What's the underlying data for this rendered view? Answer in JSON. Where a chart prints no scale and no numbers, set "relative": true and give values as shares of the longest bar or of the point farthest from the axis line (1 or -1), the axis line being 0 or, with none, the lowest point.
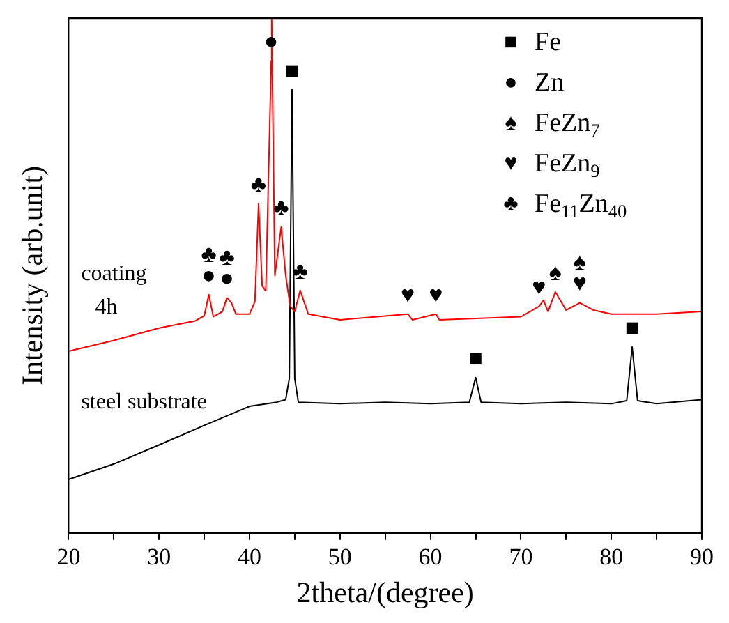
{
  "chart_data": {
    "type": "line",
    "relative": true,
    "xlabel": "2theta/(degree)",
    "ylabel": "Intensity (arb.unit)",
    "xlim": [
      20,
      90
    ],
    "xticks": [
      20,
      {
        "value": 25,
        "label": null
      },
      30,
      {
        "value": 35,
        "label": null
      },
      40,
      {
        "value": 45,
        "label": null
      },
      50,
      {
        "value": 55,
        "label": null
      },
      60,
      {
        "value": 65,
        "label": null
      },
      70,
      {
        "value": 75,
        "label": null
      },
      80,
      {
        "value": 85,
        "label": null
      },
      90
    ],
    "legend": false,
    "grid": false,
    "marker": "none",
    "line_style": "solid",
    "series": [
      {
        "name": "coating 4h",
        "color": "#ff0000",
        "x": [
          20,
          25,
          30,
          34,
          35,
          35.5,
          36,
          37,
          37.5,
          38,
          38.5,
          40,
          40.6,
          41,
          41.4,
          41.8,
          42.4,
          42.45,
          42.8,
          43.5,
          44,
          44.5,
          45,
          45.6,
          46.5,
          50,
          57.5,
          58,
          60.6,
          61,
          70,
          72,
          72.5,
          73,
          73.8,
          75,
          76.5,
          78,
          80,
          85,
          90
        ],
        "values": [
          0.353,
          0.374,
          0.398,
          0.412,
          0.422,
          0.463,
          0.42,
          0.43,
          0.457,
          0.447,
          0.425,
          0.425,
          0.45,
          0.639,
          0.48,
          0.47,
          0.917,
          1.0,
          0.5,
          0.594,
          0.5,
          0.44,
          0.43,
          0.471,
          0.425,
          0.414,
          0.425,
          0.414,
          0.425,
          0.414,
          0.42,
          0.44,
          0.452,
          0.43,
          0.468,
          0.433,
          0.447,
          0.433,
          0.425,
          0.425,
          0.43
        ]
      },
      {
        "name": "steel substrate",
        "color": "#000000",
        "x": [
          20,
          25,
          30,
          35,
          40,
          43,
          44,
          44.4,
          44.7,
          45,
          45.4,
          50,
          55,
          60,
          64.3,
          65,
          65.6,
          70,
          75,
          80,
          81.7,
          82.3,
          82.9,
          85,
          90
        ],
        "values": [
          0.104,
          0.134,
          0.171,
          0.209,
          0.246,
          0.254,
          0.259,
          0.3,
          0.861,
          0.3,
          0.254,
          0.251,
          0.254,
          0.251,
          0.254,
          0.302,
          0.254,
          0.251,
          0.254,
          0.251,
          0.257,
          0.361,
          0.257,
          0.251,
          0.259
        ]
      }
    ],
    "annotations": [
      "■ Fe",
      "● Zn",
      "♠ FeZn$_{7}$",
      "♥ FeZn$_{9}$",
      "♣ Fe$_{11}$Zn$_{40}$",
      {
        "text": "●",
        "x": 35.5,
        "y": 0.463
      },
      {
        "text": "♣",
        "x": 35.5,
        "y": 0.463
      },
      {
        "text": "●",
        "x": 37.5,
        "y": 0.457
      },
      {
        "text": "♣",
        "x": 37.5,
        "y": 0.457
      },
      {
        "text": "♣",
        "x": 41,
        "y": 0.639
      },
      {
        "text": "●",
        "x": 42.4,
        "y": 0.917
      },
      {
        "text": "♣",
        "x": 43.5,
        "y": 0.594
      },
      {
        "text": "■",
        "x": 44.7,
        "y": 0.861
      },
      {
        "text": "♣",
        "x": 45.6,
        "y": 0.471
      },
      {
        "text": "♥",
        "x": 57.5,
        "y": 0.425
      },
      {
        "text": "♥",
        "x": 60.6,
        "y": 0.425
      },
      {
        "text": "♥",
        "x": 72,
        "y": 0.44
      },
      {
        "text": "♠",
        "x": 73.8,
        "y": 0.468
      },
      {
        "text": "♥",
        "x": 76.5,
        "y": 0.447
      },
      {
        "text": "♠",
        "x": 76.5,
        "y": 0.447
      },
      {
        "text": "■",
        "x": 65,
        "y": 0.302
      },
      {
        "text": "■",
        "x": 82.3,
        "y": 0.361
      }
    ]
  }
}
